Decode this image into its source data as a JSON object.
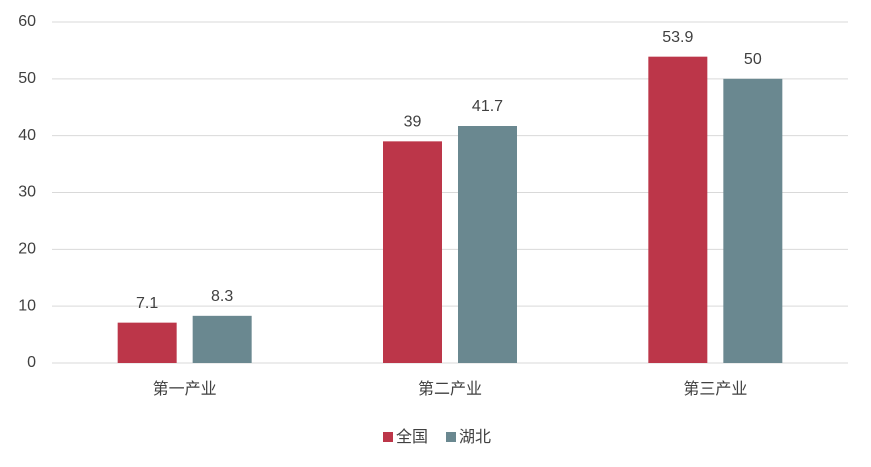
{
  "chart_data": {
    "type": "bar",
    "categories": [
      "第一产业",
      "第二产业",
      "第三产业"
    ],
    "series": [
      {
        "name": "全国",
        "color": "#bc3649",
        "values": [
          7.1,
          39,
          53.9
        ]
      },
      {
        "name": "湖北",
        "color": "#6a8890",
        "values": [
          8.3,
          41.7,
          50
        ]
      }
    ],
    "ylim": [
      0,
      60
    ],
    "yticks": [
      0,
      10,
      20,
      30,
      40,
      50,
      60
    ],
    "grid": true,
    "legend": "bottom"
  }
}
